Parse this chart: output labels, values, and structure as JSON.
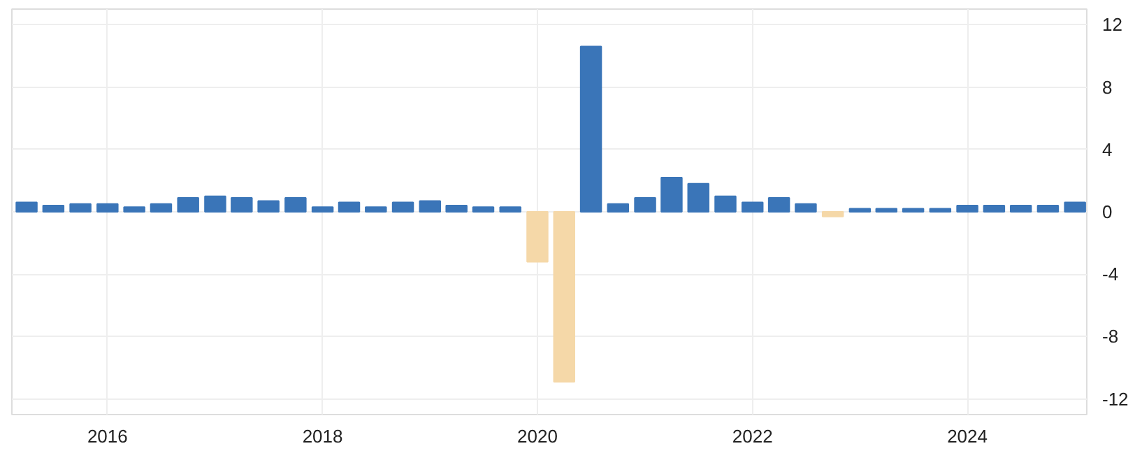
{
  "chart_data": {
    "type": "bar",
    "x": [
      "2015-04-01",
      "2015-07-01",
      "2015-10-01",
      "2016-01-01",
      "2016-04-01",
      "2016-07-01",
      "2016-10-01",
      "2017-01-01",
      "2017-04-01",
      "2017-07-01",
      "2017-10-01",
      "2018-01-01",
      "2018-04-01",
      "2018-07-01",
      "2018-10-01",
      "2019-01-01",
      "2019-04-01",
      "2019-07-01",
      "2019-10-01",
      "2020-01-01",
      "2020-04-01",
      "2020-07-01",
      "2020-10-01",
      "2021-01-01",
      "2021-04-01",
      "2021-07-01",
      "2021-10-01",
      "2022-01-01",
      "2022-04-01",
      "2022-07-01",
      "2022-10-01",
      "2023-01-01",
      "2023-04-01",
      "2023-07-01",
      "2023-10-01",
      "2024-01-01",
      "2024-04-01",
      "2024-07-01",
      "2024-10-01",
      "2025-01-01"
    ],
    "values": [
      0.6,
      0.4,
      0.5,
      0.5,
      0.3,
      0.5,
      0.9,
      1.0,
      0.9,
      0.7,
      0.9,
      0.3,
      0.6,
      0.3,
      0.6,
      0.7,
      0.4,
      0.3,
      0.3,
      -3.2,
      -10.9,
      10.6,
      0.5,
      0.9,
      2.2,
      1.8,
      1.0,
      0.6,
      0.9,
      0.5,
      -0.3,
      0.2,
      0.2,
      0.2,
      0.2,
      0.4,
      0.4,
      0.4,
      0.4,
      0.6
    ],
    "colors": [
      "#3a75b8",
      "#3a75b8",
      "#3a75b8",
      "#3a75b8",
      "#3a75b8",
      "#3a75b8",
      "#3a75b8",
      "#3a75b8",
      "#3a75b8",
      "#3a75b8",
      "#3a75b8",
      "#3a75b8",
      "#3a75b8",
      "#3a75b8",
      "#3a75b8",
      "#3a75b8",
      "#3a75b8",
      "#3a75b8",
      "#3a75b8",
      "#f5d8a8",
      "#f5d8a8",
      "#3a75b8",
      "#3a75b8",
      "#3a75b8",
      "#3a75b8",
      "#3a75b8",
      "#3a75b8",
      "#3a75b8",
      "#3a75b8",
      "#3a75b8",
      "#f5d8a8",
      "#3a75b8",
      "#3a75b8",
      "#3a75b8",
      "#3a75b8",
      "#3a75b8",
      "#3a75b8",
      "#3a75b8",
      "#3a75b8",
      "#3a75b8"
    ],
    "xlim": [
      "2015-02-10",
      "2025-02-10"
    ],
    "xticks": [
      {
        "value": "2016-01-01",
        "label": "2016"
      },
      {
        "value": "2018-01-01",
        "label": "2018"
      },
      {
        "value": "2020-01-01",
        "label": "2020"
      },
      {
        "value": "2022-01-01",
        "label": "2022"
      },
      {
        "value": "2024-01-01",
        "label": "2024"
      }
    ],
    "ylim": [
      -13,
      13
    ],
    "yticks": [
      -12,
      -8,
      -4,
      0,
      4,
      8,
      12
    ],
    "grid": true
  }
}
